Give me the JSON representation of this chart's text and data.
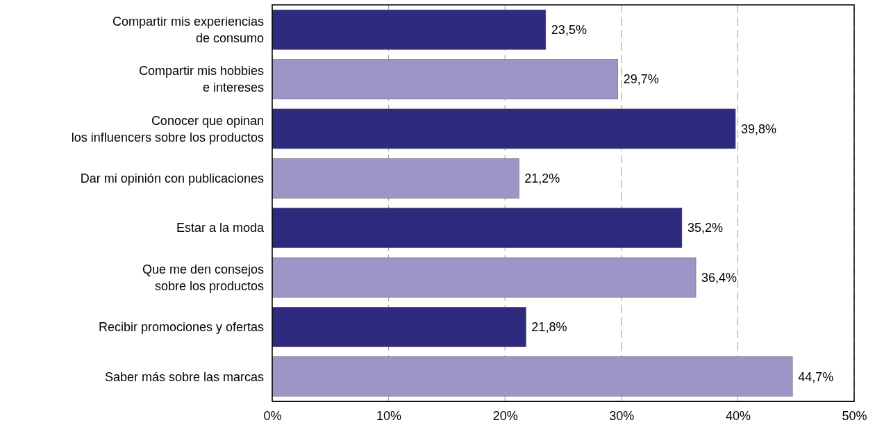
{
  "chart_data": {
    "type": "bar",
    "orientation": "horizontal",
    "categories": [
      "Compartir mis experiencias\nde consumo",
      "Compartir mis hobbies\ne intereses",
      "Conocer que opinan\nlos influencers sobre los productos",
      "Dar mi opinión con publicaciones",
      "Estar a la moda",
      "Que me den consejos\nsobre los productos",
      "Recibir promociones y ofertas",
      "Saber más sobre las marcas"
    ],
    "values": [
      23.5,
      29.7,
      39.8,
      21.2,
      35.2,
      36.4,
      21.8,
      44.7
    ],
    "value_labels": [
      "23,5%",
      "29,7%",
      "39,8%",
      "21,2%",
      "35,2%",
      "36,4%",
      "21,8%",
      "44,7%"
    ],
    "colors": [
      "#2e2a7e",
      "#9b96c6",
      "#2e2a7e",
      "#9b96c6",
      "#2e2a7e",
      "#9b96c6",
      "#2e2a7e",
      "#9b96c6"
    ],
    "xlim": [
      0,
      50
    ],
    "xticks": [
      {
        "value": 0,
        "label": "0%"
      },
      {
        "value": 10,
        "label": "10%"
      },
      {
        "value": 20,
        "label": "20%"
      },
      {
        "value": 30,
        "label": "30%"
      },
      {
        "value": 40,
        "label": "40%"
      },
      {
        "value": 50,
        "label": "50%"
      }
    ],
    "grid": "x"
  }
}
